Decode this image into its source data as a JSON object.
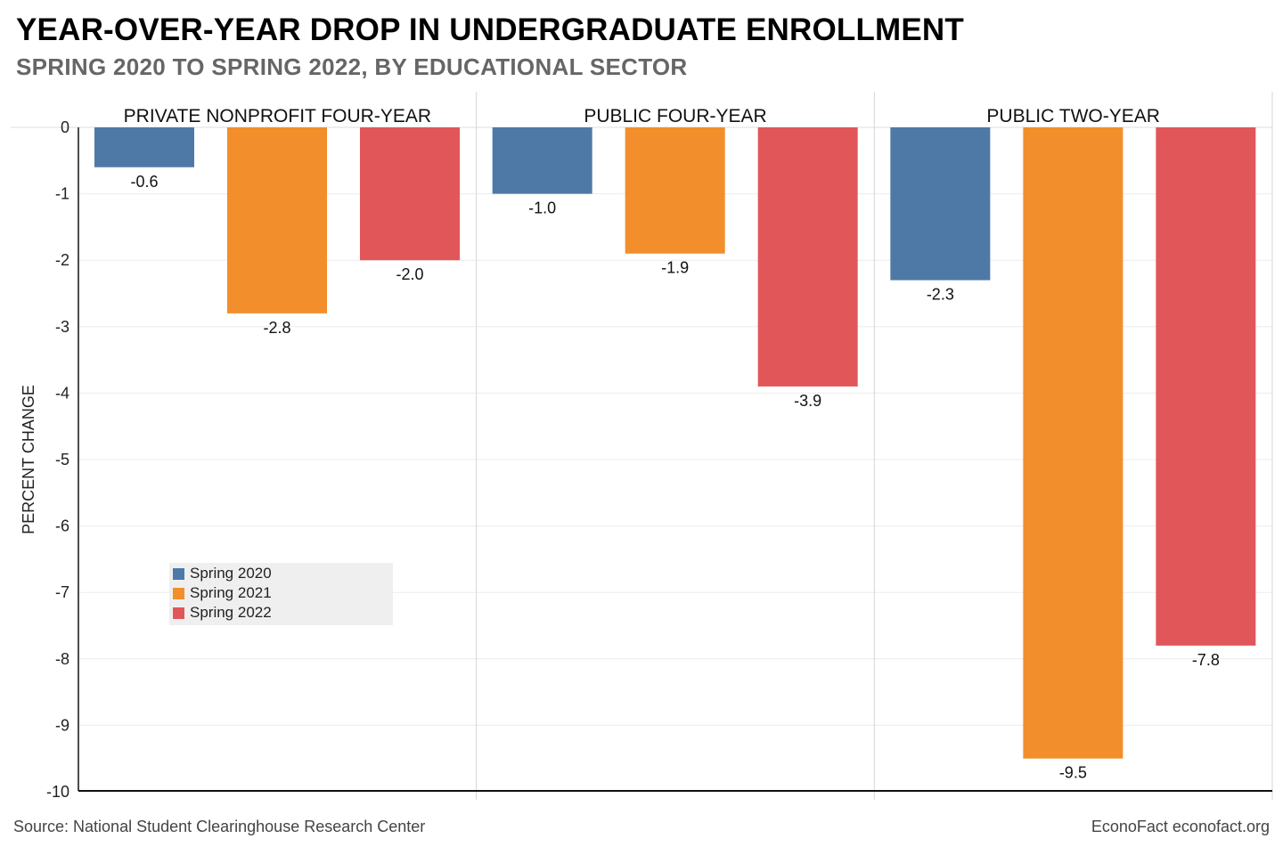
{
  "title": "YEAR-OVER-YEAR DROP IN UNDERGRADUATE ENROLLMENT",
  "subtitle": "SPRING 2020 TO SPRING 2022, BY EDUCATIONAL SECTOR",
  "source": "Source: National Student Clearinghouse Research Center",
  "credit": "EconoFact  econofact.org",
  "chart_data": {
    "type": "bar",
    "ylabel": "PERCENT CHANGE",
    "ylim": [
      -10,
      0
    ],
    "yticks": [
      "0",
      "-1",
      "-2",
      "-3",
      "-4",
      "-5",
      "-6",
      "-7",
      "-8",
      "-9",
      "-10"
    ],
    "grid": true,
    "legend_position": "lower-left of first panel",
    "categories": [
      "PRIVATE NONPROFIT FOUR-YEAR",
      "PUBLIC FOUR-YEAR",
      "PUBLIC TWO-YEAR"
    ],
    "series": [
      {
        "name": "Spring 2020",
        "color": "#4e79a7",
        "values": [
          -0.6,
          -1.0,
          -2.3
        ],
        "labels": [
          "-0.6",
          "-1.0",
          "-2.3"
        ]
      },
      {
        "name": "Spring 2021",
        "color": "#f28e2b",
        "values": [
          -2.8,
          -1.9,
          -9.5
        ],
        "labels": [
          "-2.8",
          "-1.9",
          "-9.5"
        ]
      },
      {
        "name": "Spring 2022",
        "color": "#e15759",
        "values": [
          -2.0,
          -3.9,
          -7.8
        ],
        "labels": [
          "-2.0",
          "-3.9",
          "-7.8"
        ]
      }
    ]
  }
}
